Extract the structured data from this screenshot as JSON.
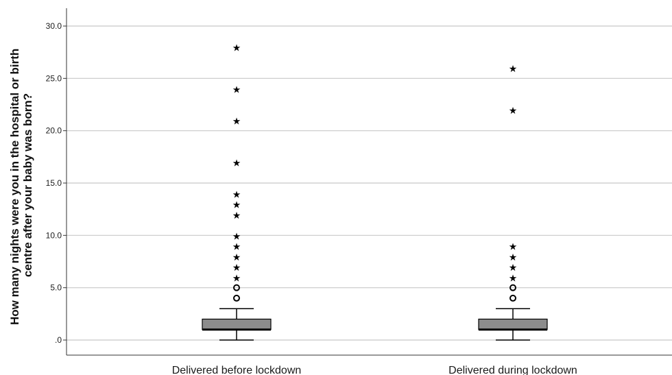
{
  "chart_data": {
    "type": "boxplot",
    "title": "",
    "xlabel": "",
    "ylabel": "How many nights were you in the hospital or birth centre after your baby was born?",
    "ylabel_lines": [
      "How many nights were you in the hospital or birth",
      "centre after your baby was born?"
    ],
    "ylim": [
      0,
      30
    ],
    "yticks": [
      0,
      5,
      10,
      15,
      20,
      25,
      30
    ],
    "ytick_labels": [
      ".0",
      "5.0",
      "10.0",
      "15.0",
      "20.0",
      "25.0",
      "30.0"
    ],
    "grid": true,
    "box_color": "#8c8c8c",
    "categories": [
      "Delivered before lockdown",
      "Delivered during lockdown"
    ],
    "boxes": [
      {
        "name": "Delivered before lockdown",
        "whisker_low": 0,
        "q1": 1,
        "median": 1,
        "q3": 2,
        "whisker_high": 3,
        "outliers": [
          4,
          5
        ],
        "extremes": [
          6,
          7,
          8,
          9,
          10,
          12,
          13,
          14,
          17,
          21,
          24,
          28
        ]
      },
      {
        "name": "Delivered during lockdown",
        "whisker_low": 0,
        "q1": 1,
        "median": 1,
        "q3": 2,
        "whisker_high": 3,
        "outliers": [
          4,
          5
        ],
        "extremes": [
          6,
          7,
          8,
          9,
          22,
          26
        ]
      }
    ]
  }
}
